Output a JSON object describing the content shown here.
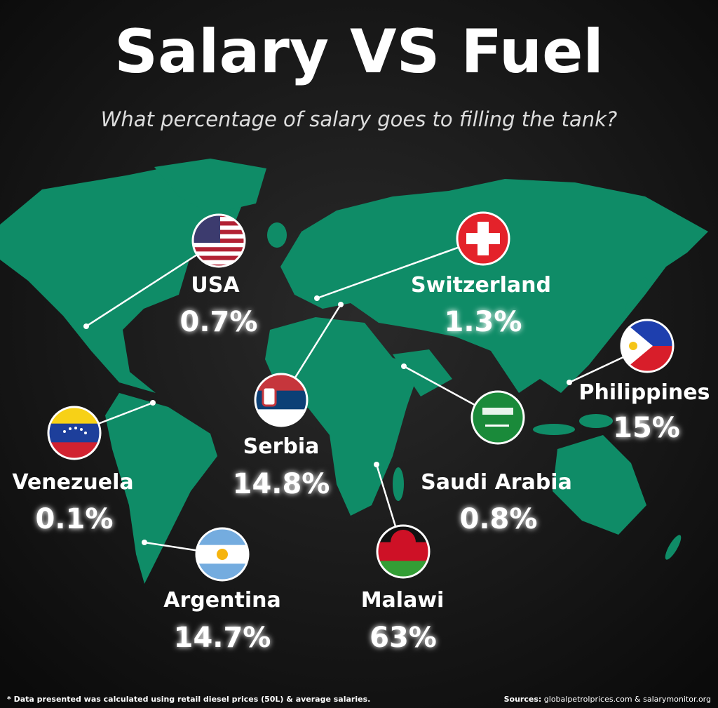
{
  "header": {
    "title": "Salary VS Fuel",
    "subtitle": "What percentage of salary goes to filling the tank?"
  },
  "countries": [
    {
      "name": "USA",
      "value": "0.7%"
    },
    {
      "name": "Switzerland",
      "value": "1.3%"
    },
    {
      "name": "Philippines",
      "value": "15%"
    },
    {
      "name": "Venezuela",
      "value": "0.1%"
    },
    {
      "name": "Serbia",
      "value": "14.8%"
    },
    {
      "name": "Saudi Arabia",
      "value": "0.8%"
    },
    {
      "name": "Argentina",
      "value": "14.7%"
    },
    {
      "name": "Malawi",
      "value": "63%"
    }
  ],
  "footer": {
    "note": "* Data presented was calculated using retail diesel prices (50L) & average salaries.",
    "sources_label": "Sources:",
    "sources": "globalpetrolprices.com & salarymonitor.org"
  }
}
